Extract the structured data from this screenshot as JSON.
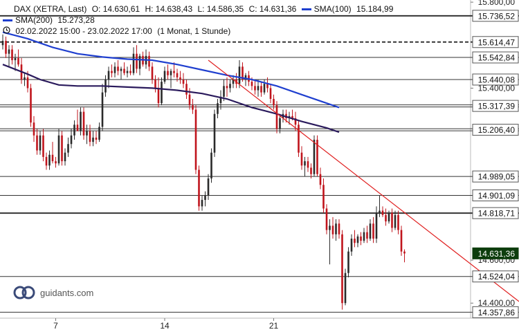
{
  "header": {
    "symbol": "DAX (XETRA, Last)",
    "open": "O: 14.630,61",
    "high": "H: 14.638,43",
    "low": "L: 14.586,35",
    "close": "C: 14.631,36",
    "period": "02.02.2022 15:00 - 23.02.2022 17:00",
    "interval": "(1 Monat, 1 Stunde)"
  },
  "brand": {
    "name": "guidants.com"
  },
  "colors": {
    "up": "#2a2a2a",
    "down": "#c0141c",
    "sma100": "#1f3fcf",
    "sma200": "#2a1a5c",
    "trend": "#e02020",
    "level": "#333333",
    "last": "#0d3d0d"
  },
  "chart_data": {
    "type": "candlestick",
    "title": "DAX (XETRA, Last)",
    "ylim": [
      14330,
      15810
    ],
    "x_ticks": [
      {
        "label": "7",
        "x": 17
      },
      {
        "label": "14",
        "x": 52
      },
      {
        "label": "21",
        "x": 87
      }
    ],
    "y_ticks": [
      {
        "value": 15800,
        "label": "15.800,00"
      },
      {
        "value": 15400,
        "label": "15.400,00"
      },
      {
        "value": 14600,
        "label": "14.600,00"
      },
      {
        "value": 14400,
        "label": "14.400,00"
      }
    ],
    "levels": [
      {
        "value": 15736.52,
        "label": "15.736,52",
        "style": "thick"
      },
      {
        "value": 15614.47,
        "label": "15.614,47",
        "style": "dashed"
      },
      {
        "value": 15542.84,
        "label": "15.542,84",
        "style": "thin"
      },
      {
        "value": 15440.08,
        "label": "15.440,08",
        "style": "thin"
      },
      {
        "value": 15317.39,
        "label": "15.317,39",
        "style": "double"
      },
      {
        "value": 15206.4,
        "label": "15.206,40",
        "style": "double"
      },
      {
        "value": 14989.05,
        "label": "14.989,05",
        "style": "thin"
      },
      {
        "value": 14901.09,
        "label": "14.901,09",
        "style": "thin"
      },
      {
        "value": 14818.71,
        "label": "14.818,71",
        "style": "thick"
      },
      {
        "value": 14524.04,
        "label": "14.524,04",
        "style": "thin"
      },
      {
        "value": 14357.86,
        "label": "14.357,86",
        "style": "thin"
      }
    ],
    "last_price": {
      "value": 14631.36,
      "label": "14.631,36"
    },
    "series": [
      {
        "name": "SMA(100)",
        "value_label": "15.184,99",
        "points": [
          [
            0,
            15660
          ],
          [
            8,
            15630
          ],
          [
            16,
            15590
          ],
          [
            24,
            15560
          ],
          [
            32,
            15545
          ],
          [
            40,
            15535
          ],
          [
            48,
            15530
          ],
          [
            56,
            15510
          ],
          [
            64,
            15485
          ],
          [
            72,
            15460
          ],
          [
            80,
            15440
          ],
          [
            88,
            15410
          ],
          [
            96,
            15370
          ],
          [
            104,
            15330
          ],
          [
            108,
            15310
          ]
        ]
      },
      {
        "name": "SMA(200)",
        "value_label": "15.273,28",
        "points": [
          [
            0,
            15510
          ],
          [
            8,
            15465
          ],
          [
            12,
            15440
          ],
          [
            18,
            15415
          ],
          [
            24,
            15410
          ],
          [
            32,
            15410
          ],
          [
            40,
            15405
          ],
          [
            48,
            15400
          ],
          [
            56,
            15390
          ],
          [
            64,
            15375
          ],
          [
            72,
            15350
          ],
          [
            80,
            15310
          ],
          [
            88,
            15280
          ],
          [
            96,
            15245
          ],
          [
            104,
            15215
          ],
          [
            108,
            15195
          ]
        ]
      }
    ],
    "trendline": {
      "points": [
        [
          66,
          15530
        ],
        [
          130,
          14810
        ]
      ]
    },
    "candles": [
      {
        "o": 15600,
        "h": 15650,
        "l": 15580,
        "c": 15620
      },
      {
        "o": 15620,
        "h": 15640,
        "l": 15540,
        "c": 15560
      },
      {
        "o": 15560,
        "h": 15600,
        "l": 15500,
        "c": 15580
      },
      {
        "o": 15580,
        "h": 15600,
        "l": 15510,
        "c": 15530
      },
      {
        "o": 15530,
        "h": 15560,
        "l": 15480,
        "c": 15540
      },
      {
        "o": 15540,
        "h": 15580,
        "l": 15500,
        "c": 15510
      },
      {
        "o": 15510,
        "h": 15540,
        "l": 15420,
        "c": 15440
      },
      {
        "o": 15440,
        "h": 15470,
        "l": 15410,
        "c": 15450
      },
      {
        "o": 15450,
        "h": 15480,
        "l": 15380,
        "c": 15400
      },
      {
        "o": 15400,
        "h": 15420,
        "l": 15220,
        "c": 15240
      },
      {
        "o": 15240,
        "h": 15270,
        "l": 15150,
        "c": 15180
      },
      {
        "o": 15180,
        "h": 15210,
        "l": 15090,
        "c": 15110
      },
      {
        "o": 15110,
        "h": 15200,
        "l": 15090,
        "c": 15180
      },
      {
        "o": 15180,
        "h": 15210,
        "l": 15060,
        "c": 15080
      },
      {
        "o": 15080,
        "h": 15100,
        "l": 15020,
        "c": 15040
      },
      {
        "o": 15040,
        "h": 15110,
        "l": 15020,
        "c": 15090
      },
      {
        "o": 15090,
        "h": 15150,
        "l": 15050,
        "c": 15060
      },
      {
        "o": 15060,
        "h": 15080,
        "l": 15030,
        "c": 15050
      },
      {
        "o": 15050,
        "h": 15210,
        "l": 15040,
        "c": 15180
      },
      {
        "o": 15180,
        "h": 15200,
        "l": 15040,
        "c": 15060
      },
      {
        "o": 15060,
        "h": 15120,
        "l": 15040,
        "c": 15100
      },
      {
        "o": 15100,
        "h": 15170,
        "l": 15080,
        "c": 15140
      },
      {
        "o": 15140,
        "h": 15210,
        "l": 15120,
        "c": 15180
      },
      {
        "o": 15180,
        "h": 15250,
        "l": 15160,
        "c": 15230
      },
      {
        "o": 15230,
        "h": 15300,
        "l": 15200,
        "c": 15200
      },
      {
        "o": 15200,
        "h": 15310,
        "l": 15180,
        "c": 15290
      },
      {
        "o": 15290,
        "h": 15310,
        "l": 15160,
        "c": 15180
      },
      {
        "o": 15180,
        "h": 15230,
        "l": 15140,
        "c": 15200
      },
      {
        "o": 15200,
        "h": 15230,
        "l": 15130,
        "c": 15150
      },
      {
        "o": 15150,
        "h": 15200,
        "l": 15130,
        "c": 15170
      },
      {
        "o": 15170,
        "h": 15200,
        "l": 15140,
        "c": 15160
      },
      {
        "o": 15160,
        "h": 15240,
        "l": 15150,
        "c": 15220
      },
      {
        "o": 15220,
        "h": 15420,
        "l": 15200,
        "c": 15380
      },
      {
        "o": 15380,
        "h": 15460,
        "l": 15360,
        "c": 15440
      },
      {
        "o": 15440,
        "h": 15500,
        "l": 15400,
        "c": 15480
      },
      {
        "o": 15480,
        "h": 15510,
        "l": 15450,
        "c": 15470
      },
      {
        "o": 15470,
        "h": 15520,
        "l": 15450,
        "c": 15500
      },
      {
        "o": 15500,
        "h": 15530,
        "l": 15460,
        "c": 15480
      },
      {
        "o": 15480,
        "h": 15500,
        "l": 15440,
        "c": 15490
      },
      {
        "o": 15490,
        "h": 15520,
        "l": 15460,
        "c": 15470
      },
      {
        "o": 15470,
        "h": 15500,
        "l": 15450,
        "c": 15480
      },
      {
        "o": 15480,
        "h": 15510,
        "l": 15460,
        "c": 15470
      },
      {
        "o": 15470,
        "h": 15590,
        "l": 15460,
        "c": 15560
      },
      {
        "o": 15560,
        "h": 15600,
        "l": 15470,
        "c": 15490
      },
      {
        "o": 15490,
        "h": 15560,
        "l": 15460,
        "c": 15550
      },
      {
        "o": 15550,
        "h": 15570,
        "l": 15500,
        "c": 15510
      },
      {
        "o": 15510,
        "h": 15580,
        "l": 15490,
        "c": 15550
      },
      {
        "o": 15550,
        "h": 15570,
        "l": 15480,
        "c": 15500
      },
      {
        "o": 15500,
        "h": 15520,
        "l": 15420,
        "c": 15440
      },
      {
        "o": 15440,
        "h": 15460,
        "l": 15380,
        "c": 15400
      },
      {
        "o": 15400,
        "h": 15450,
        "l": 15310,
        "c": 15330
      },
      {
        "o": 15330,
        "h": 15450,
        "l": 15320,
        "c": 15430
      },
      {
        "o": 15430,
        "h": 15500,
        "l": 15420,
        "c": 15480
      },
      {
        "o": 15480,
        "h": 15510,
        "l": 15440,
        "c": 15460
      },
      {
        "o": 15460,
        "h": 15490,
        "l": 15400,
        "c": 15480
      },
      {
        "o": 15480,
        "h": 15520,
        "l": 15450,
        "c": 15470
      },
      {
        "o": 15470,
        "h": 15490,
        "l": 15430,
        "c": 15450
      },
      {
        "o": 15450,
        "h": 15480,
        "l": 15420,
        "c": 15440
      },
      {
        "o": 15440,
        "h": 15470,
        "l": 15400,
        "c": 15420
      },
      {
        "o": 15420,
        "h": 15440,
        "l": 15350,
        "c": 15370
      },
      {
        "o": 15370,
        "h": 15400,
        "l": 15300,
        "c": 15320
      },
      {
        "o": 15320,
        "h": 15350,
        "l": 15280,
        "c": 15300
      },
      {
        "o": 15300,
        "h": 15320,
        "l": 15000,
        "c": 15020
      },
      {
        "o": 15020,
        "h": 15040,
        "l": 14830,
        "c": 14850
      },
      {
        "o": 14850,
        "h": 14900,
        "l": 14830,
        "c": 14880
      },
      {
        "o": 14880,
        "h": 14920,
        "l": 14850,
        "c": 14900
      },
      {
        "o": 14900,
        "h": 15000,
        "l": 14880,
        "c": 14980
      },
      {
        "o": 14980,
        "h": 15120,
        "l": 14960,
        "c": 15100
      },
      {
        "o": 15100,
        "h": 15300,
        "l": 15080,
        "c": 15280
      },
      {
        "o": 15280,
        "h": 15350,
        "l": 15260,
        "c": 15330
      },
      {
        "o": 15330,
        "h": 15390,
        "l": 15300,
        "c": 15360
      },
      {
        "o": 15360,
        "h": 15440,
        "l": 15340,
        "c": 15410
      },
      {
        "o": 15410,
        "h": 15450,
        "l": 15360,
        "c": 15400
      },
      {
        "o": 15400,
        "h": 15440,
        "l": 15380,
        "c": 15420
      },
      {
        "o": 15420,
        "h": 15460,
        "l": 15400,
        "c": 15440
      },
      {
        "o": 15440,
        "h": 15470,
        "l": 15400,
        "c": 15420
      },
      {
        "o": 15420,
        "h": 15530,
        "l": 15400,
        "c": 15500
      },
      {
        "o": 15500,
        "h": 15520,
        "l": 15430,
        "c": 15440
      },
      {
        "o": 15440,
        "h": 15470,
        "l": 15410,
        "c": 15460
      },
      {
        "o": 15460,
        "h": 15480,
        "l": 15410,
        "c": 15430
      },
      {
        "o": 15430,
        "h": 15450,
        "l": 15390,
        "c": 15410
      },
      {
        "o": 15410,
        "h": 15440,
        "l": 15370,
        "c": 15390
      },
      {
        "o": 15390,
        "h": 15440,
        "l": 15360,
        "c": 15410
      },
      {
        "o": 15410,
        "h": 15430,
        "l": 15360,
        "c": 15380
      },
      {
        "o": 15380,
        "h": 15440,
        "l": 15370,
        "c": 15420
      },
      {
        "o": 15420,
        "h": 15450,
        "l": 15380,
        "c": 15400
      },
      {
        "o": 15400,
        "h": 15420,
        "l": 15330,
        "c": 15350
      },
      {
        "o": 15350,
        "h": 15370,
        "l": 15300,
        "c": 15320
      },
      {
        "o": 15320,
        "h": 15340,
        "l": 15190,
        "c": 15210
      },
      {
        "o": 15210,
        "h": 15280,
        "l": 15190,
        "c": 15260
      },
      {
        "o": 15260,
        "h": 15300,
        "l": 15240,
        "c": 15280
      },
      {
        "o": 15280,
        "h": 15300,
        "l": 15240,
        "c": 15260
      },
      {
        "o": 15260,
        "h": 15290,
        "l": 15230,
        "c": 15270
      },
      {
        "o": 15270,
        "h": 15300,
        "l": 15250,
        "c": 15260
      },
      {
        "o": 15260,
        "h": 15290,
        "l": 15200,
        "c": 15230
      },
      {
        "o": 15230,
        "h": 15250,
        "l": 15080,
        "c": 15100
      },
      {
        "o": 15100,
        "h": 15130,
        "l": 15020,
        "c": 15040
      },
      {
        "o": 15040,
        "h": 15080,
        "l": 14990,
        "c": 15060
      },
      {
        "o": 15060,
        "h": 15080,
        "l": 15010,
        "c": 15030
      },
      {
        "o": 15030,
        "h": 15050,
        "l": 14980,
        "c": 15000
      },
      {
        "o": 15000,
        "h": 15180,
        "l": 14990,
        "c": 15160
      },
      {
        "o": 15160,
        "h": 15180,
        "l": 14990,
        "c": 15000
      },
      {
        "o": 15000,
        "h": 15030,
        "l": 14930,
        "c": 14950
      },
      {
        "o": 14950,
        "h": 14980,
        "l": 14820,
        "c": 14840
      },
      {
        "o": 14840,
        "h": 14860,
        "l": 14720,
        "c": 14740
      },
      {
        "o": 14740,
        "h": 14790,
        "l": 14580,
        "c": 14760
      },
      {
        "o": 14760,
        "h": 14800,
        "l": 14700,
        "c": 14720
      },
      {
        "o": 14720,
        "h": 14790,
        "l": 14690,
        "c": 14770
      },
      {
        "o": 14770,
        "h": 14790,
        "l": 14700,
        "c": 14720
      },
      {
        "o": 14720,
        "h": 14740,
        "l": 14370,
        "c": 14400
      },
      {
        "o": 14400,
        "h": 14560,
        "l": 14390,
        "c": 14540
      },
      {
        "o": 14540,
        "h": 14660,
        "l": 14520,
        "c": 14640
      },
      {
        "o": 14640,
        "h": 14720,
        "l": 14620,
        "c": 14700
      },
      {
        "o": 14700,
        "h": 14740,
        "l": 14660,
        "c": 14680
      },
      {
        "o": 14680,
        "h": 14720,
        "l": 14660,
        "c": 14710
      },
      {
        "o": 14710,
        "h": 14730,
        "l": 14670,
        "c": 14690
      },
      {
        "o": 14690,
        "h": 14750,
        "l": 14680,
        "c": 14730
      },
      {
        "o": 14730,
        "h": 14760,
        "l": 14680,
        "c": 14700
      },
      {
        "o": 14700,
        "h": 14790,
        "l": 14690,
        "c": 14770
      },
      {
        "o": 14770,
        "h": 14800,
        "l": 14680,
        "c": 14700
      },
      {
        "o": 14700,
        "h": 14850,
        "l": 14680,
        "c": 14820
      },
      {
        "o": 14820,
        "h": 14900,
        "l": 14800,
        "c": 14830
      },
      {
        "o": 14830,
        "h": 14850,
        "l": 14800,
        "c": 14810
      },
      {
        "o": 14810,
        "h": 14840,
        "l": 14760,
        "c": 14780
      },
      {
        "o": 14780,
        "h": 14830,
        "l": 14770,
        "c": 14820
      },
      {
        "o": 14820,
        "h": 14840,
        "l": 14730,
        "c": 14750
      },
      {
        "o": 14750,
        "h": 14830,
        "l": 14740,
        "c": 14810
      },
      {
        "o": 14810,
        "h": 14830,
        "l": 14720,
        "c": 14740
      },
      {
        "o": 14740,
        "h": 14760,
        "l": 14620,
        "c": 14640
      },
      {
        "o": 14640,
        "h": 14650,
        "l": 14590,
        "c": 14631
      }
    ]
  }
}
